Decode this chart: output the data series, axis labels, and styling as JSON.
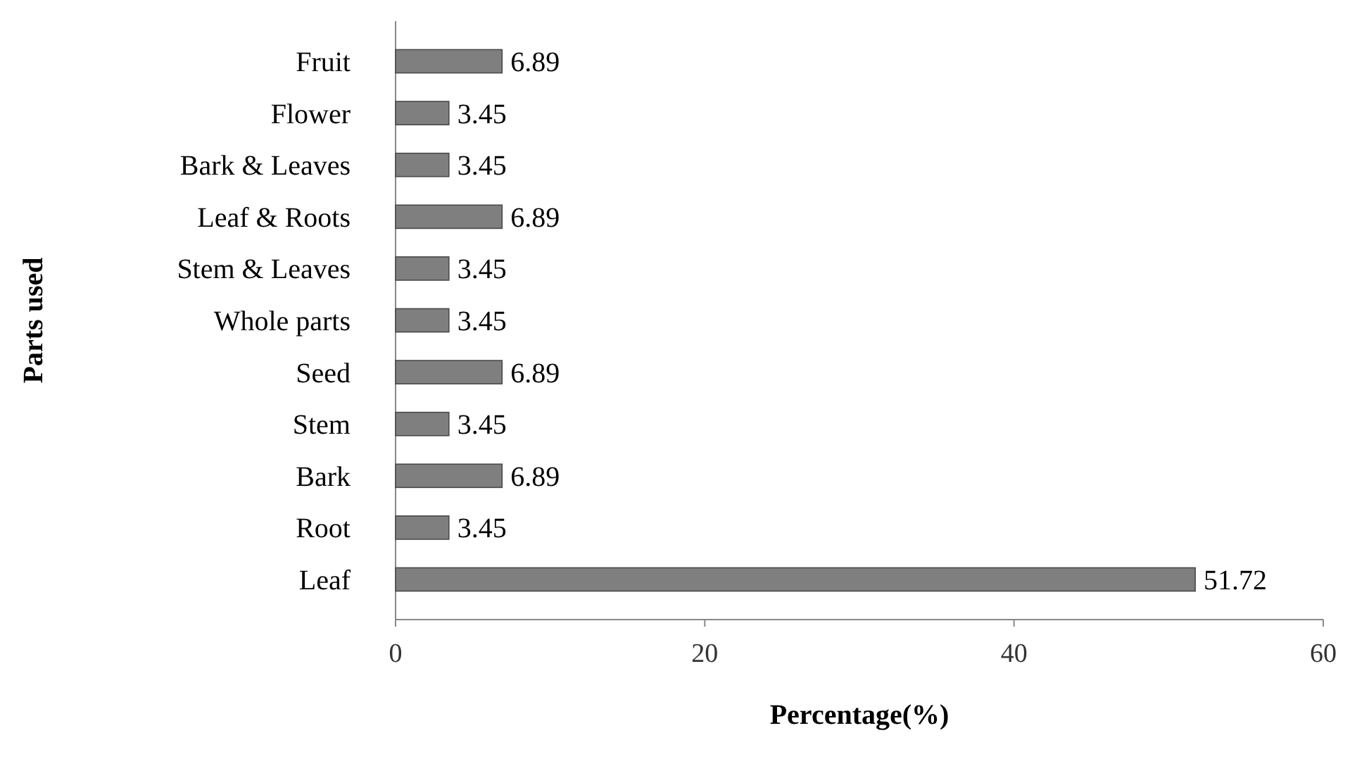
{
  "chart_data": {
    "type": "bar",
    "orientation": "horizontal",
    "xlabel": "Percentage(%)",
    "ylabel": "Parts used",
    "categories": [
      "Fruit",
      "Flower",
      "Bark & Leaves",
      "Leaf & Roots",
      "Stem & Leaves",
      "Whole parts",
      "Seed",
      "Stem",
      "Bark",
      "Root",
      "Leaf"
    ],
    "values": [
      6.89,
      3.45,
      3.45,
      6.89,
      3.45,
      3.45,
      6.89,
      3.45,
      6.89,
      3.45,
      51.72
    ],
    "color": "#7f7f7f",
    "data_labels": true,
    "xlim": [
      0,
      60
    ],
    "xticks": [
      0,
      20,
      40,
      60
    ],
    "grid": false
  }
}
